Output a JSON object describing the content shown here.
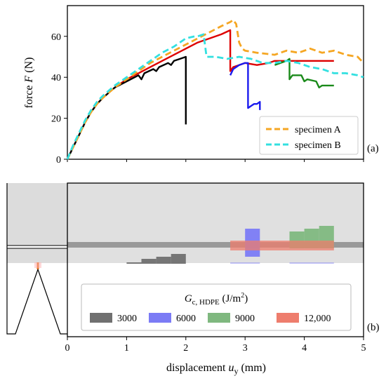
{
  "chart_data": [
    {
      "type": "line",
      "panel_label": "(a)",
      "ylabel": "force F (N)",
      "ylim": [
        0,
        75
      ],
      "xlim": [
        0,
        5
      ],
      "x_ticks": [
        "0",
        "1",
        "2",
        "3",
        "4",
        "5"
      ],
      "y_ticks": [
        "0",
        "20",
        "40",
        "60"
      ],
      "legend_position": "bottom-right",
      "grid": false,
      "series": [
        {
          "name": "specimen A",
          "style": "dashed",
          "color": "#f5a623",
          "x": [
            0,
            0.1,
            0.2,
            0.3,
            0.4,
            0.5,
            0.6,
            0.8,
            1.0,
            1.2,
            1.4,
            1.6,
            1.8,
            2.0,
            2.2,
            2.4,
            2.6,
            2.75,
            2.8,
            2.85,
            2.9,
            2.95,
            3.0,
            3.2,
            3.5,
            3.7,
            3.9,
            4.1,
            4.3,
            4.5,
            4.7,
            4.9,
            5.0
          ],
          "values": [
            0,
            6,
            12,
            18,
            23,
            27,
            30,
            35,
            39,
            43,
            47,
            50,
            53,
            56,
            59,
            62,
            65,
            67,
            68,
            66,
            57,
            54,
            53,
            52,
            51,
            53,
            52,
            54,
            52,
            53,
            51,
            50,
            47
          ]
        },
        {
          "name": "specimen B",
          "style": "dashed",
          "color": "#33e0e0",
          "x": [
            0,
            0.1,
            0.2,
            0.3,
            0.4,
            0.5,
            0.6,
            0.8,
            1.0,
            1.2,
            1.4,
            1.6,
            1.8,
            2.0,
            2.15,
            2.2,
            2.3,
            2.35,
            2.5,
            2.7,
            2.9,
            3.1,
            3.3,
            3.5,
            3.7,
            3.9,
            4.1,
            4.3,
            4.5,
            4.7,
            4.9,
            5.0
          ],
          "values": [
            0,
            7,
            13,
            19,
            24,
            28,
            31,
            36,
            40,
            44,
            48,
            52,
            55,
            59,
            60,
            60,
            61,
            50,
            50,
            49,
            50,
            49,
            47,
            47,
            48,
            47,
            45,
            44,
            42,
            42,
            41,
            40
          ]
        },
        {
          "color": "#000000",
          "x": [
            0,
            0.1,
            0.2,
            0.3,
            0.4,
            0.5,
            0.6,
            0.8,
            1.0,
            1.2,
            1.25,
            1.3,
            1.45,
            1.5,
            1.55,
            1.7,
            1.75,
            1.8,
            2.0,
            2.0
          ],
          "values": [
            0,
            6,
            12,
            18,
            23,
            27,
            30,
            35,
            38,
            41,
            39,
            42,
            44,
            43,
            45,
            47,
            46,
            48,
            50,
            17
          ]
        },
        {
          "color": "#dd0000",
          "x": [
            0,
            0.1,
            0.2,
            0.3,
            0.4,
            0.5,
            0.6,
            0.8,
            1.0,
            1.2,
            1.4,
            1.6,
            1.8,
            2.0,
            2.2,
            2.4,
            2.6,
            2.75,
            2.75,
            2.8,
            2.9,
            3.0,
            3.2,
            3.4,
            3.5,
            3.7,
            3.9,
            4.1,
            4.3,
            4.5
          ],
          "values": [
            0,
            6,
            12,
            18,
            23,
            27,
            30,
            35,
            39,
            42,
            45,
            48,
            51,
            54,
            57,
            59,
            61,
            63,
            43,
            45,
            46,
            47,
            46,
            47,
            48,
            48,
            48,
            48,
            48,
            48
          ]
        },
        {
          "color": "#1a1aee",
          "x": [
            2.75,
            2.8,
            2.9,
            3.0,
            3.05,
            3.05,
            3.1,
            3.15,
            3.2,
            3.25,
            3.25
          ],
          "values": [
            41,
            44,
            46,
            47,
            47,
            25,
            26,
            27,
            27,
            28,
            24
          ]
        },
        {
          "color": "#1a8a1a",
          "x": [
            3.5,
            3.6,
            3.7,
            3.75,
            3.75,
            3.8,
            3.95,
            4.0,
            4.05,
            4.2,
            4.25,
            4.3,
            4.5
          ],
          "values": [
            46,
            47,
            48,
            49,
            39,
            41,
            41,
            38,
            39,
            38,
            35,
            36,
            36
          ]
        }
      ]
    },
    {
      "type": "bar",
      "panel_label": "(b)",
      "xlabel": "displacement u y (mm)",
      "legend_title": "G c, HDPE (J/m 2 )",
      "legend_position": "bottom-center",
      "series": [
        {
          "name": "3000",
          "color": "#707070"
        },
        {
          "name": "6000",
          "color": "#7b7bf5"
        },
        {
          "name": "9000",
          "color": "#7fb87f"
        },
        {
          "name": "12,000",
          "color": "#ee7d6d"
        }
      ]
    }
  ],
  "texts": {
    "ylabel_prefix": "force ",
    "ylabel_F": "F",
    "ylabel_suffix": " (N)",
    "panel_a": "(a)",
    "panel_b": "(b)",
    "legend_a_1": "specimen A",
    "legend_a_2": "specimen B",
    "legend_b_title_G": "G",
    "legend_b_title_sub": "c, HDPE",
    "legend_b_title_unit": " (J/m",
    "legend_b_title_sup": "2",
    "legend_b_title_close": ")",
    "legend_b_1": "3000",
    "legend_b_2": "6000",
    "legend_b_3": "9000",
    "legend_b_4": "12,000",
    "xlabel_prefix": "displacement ",
    "xlabel_u": "u",
    "xlabel_sub": "y",
    "xlabel_suffix": " (mm)"
  }
}
